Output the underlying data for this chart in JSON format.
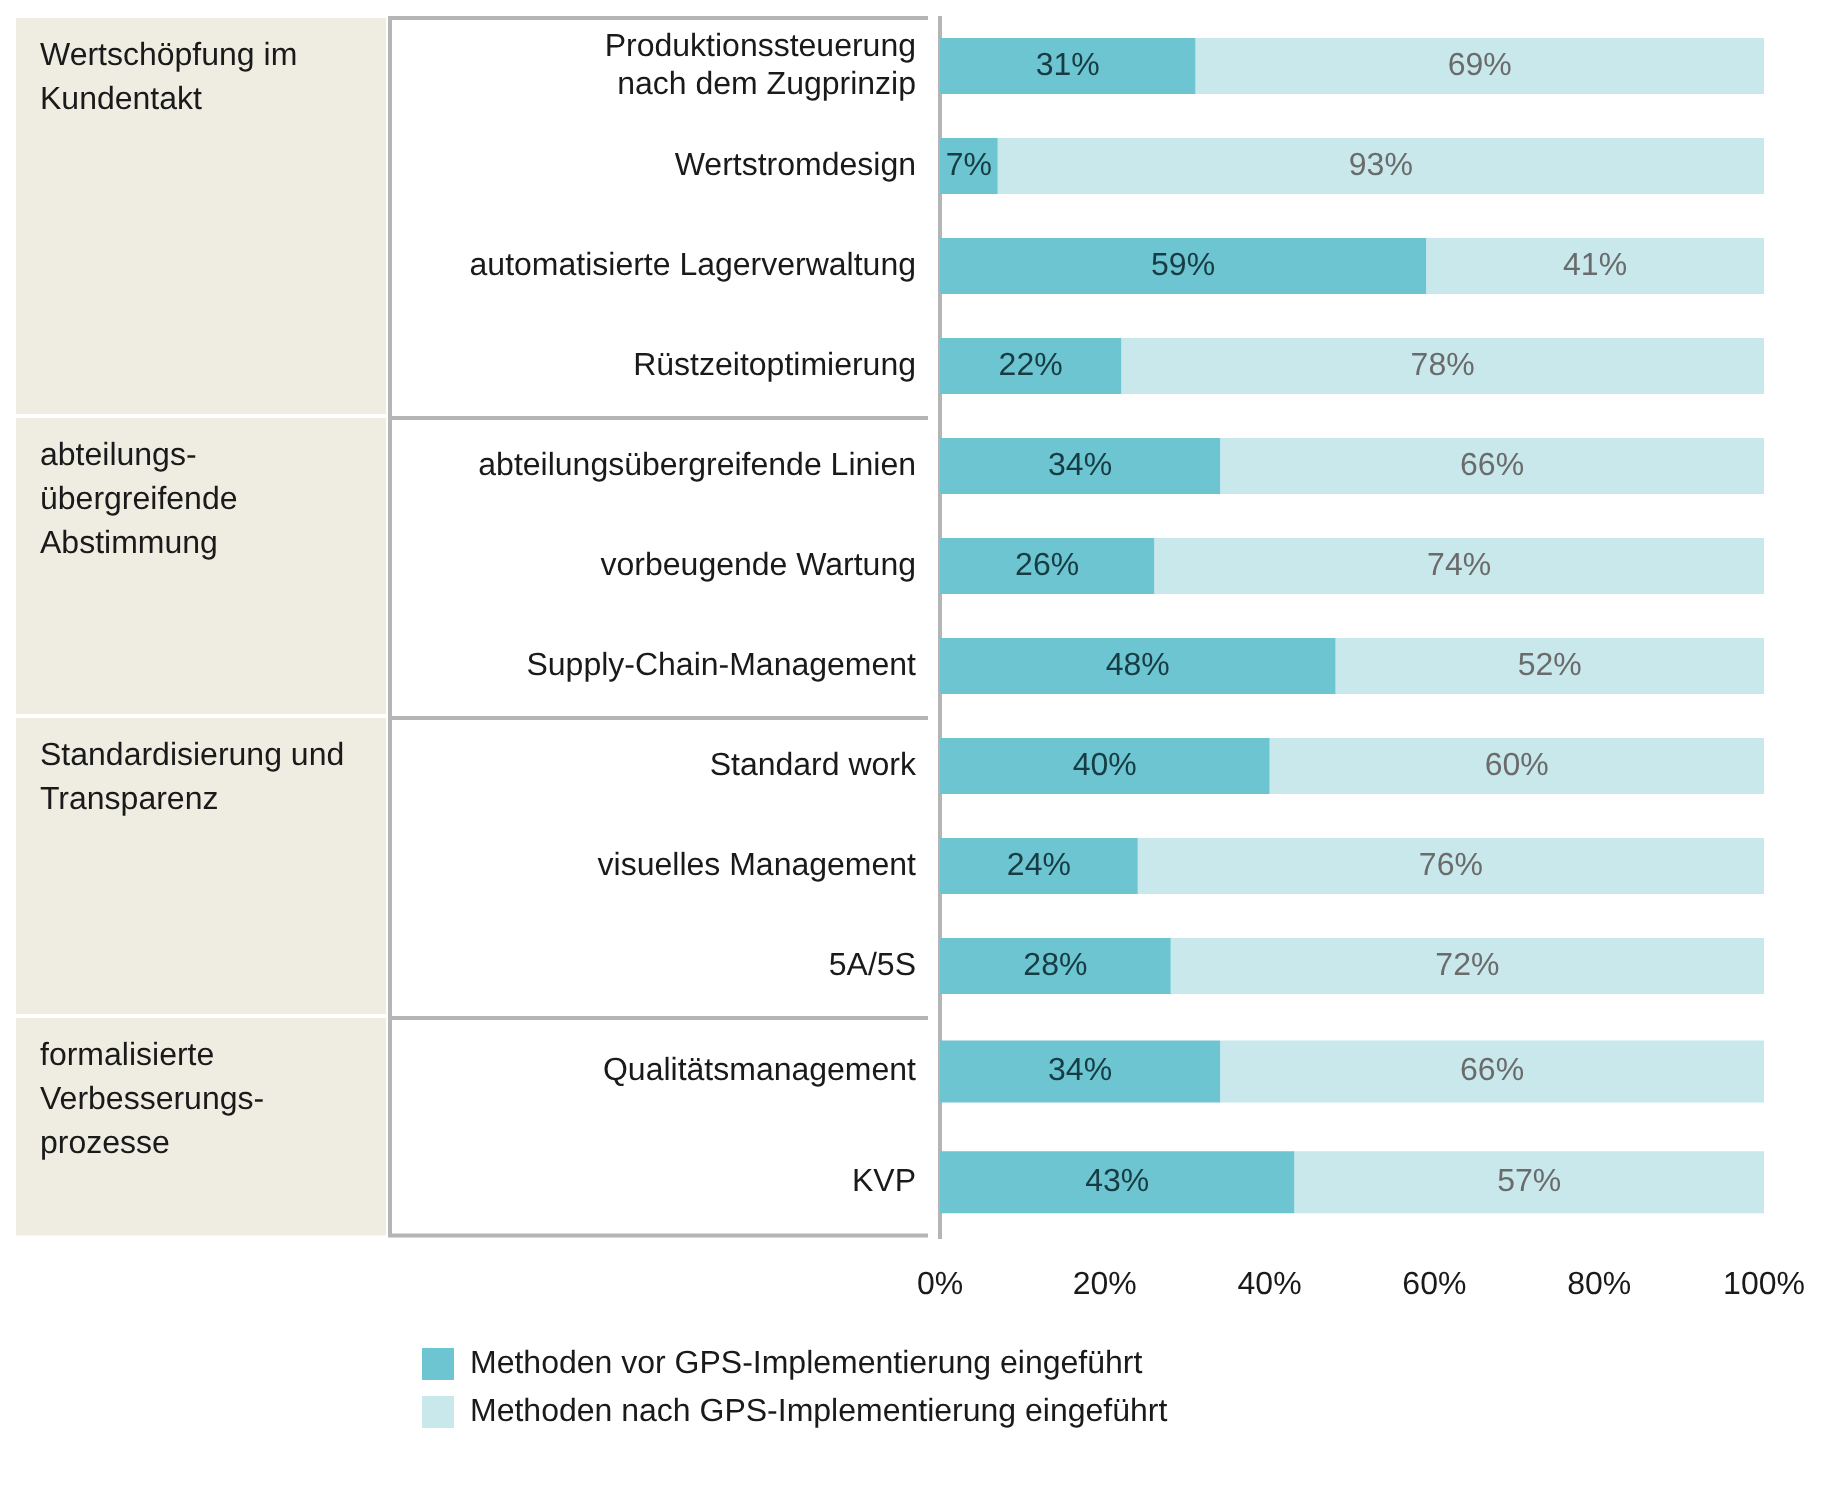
{
  "chart_data": [
    {
      "type": "bar",
      "orientation": "horizontal",
      "stacked": true,
      "ylabel": "Wertschöpfung im Kundentakt",
      "categories": [
        "Produktionssteuerung nach dem Zugprinzip",
        "Wertstromdesign",
        "automatisierte Lagerverwaltung",
        "Rüstzeitoptimierung"
      ],
      "series": [
        {
          "color": "#6cc5d1",
          "values": [
            31,
            7,
            59,
            22
          ],
          "value_labels": [
            "31%",
            "7%",
            "59%",
            "22%"
          ]
        },
        {
          "color": "#c9e8ec",
          "values": [
            69,
            93,
            41,
            78
          ],
          "value_labels": [
            "69%",
            "93%",
            "41%",
            "78%"
          ]
        }
      ],
      "xlim": [
        0,
        100
      ],
      "tick_labels": "y",
      "grid": false
    },
    {
      "type": "bar",
      "orientation": "horizontal",
      "stacked": true,
      "ylabel": "abteilungs- übergreifende Abstimmung",
      "categories": [
        "abteilungsübergreifende Linien",
        "vorbeugende Wartung",
        "Supply-Chain-Management"
      ],
      "series": [
        {
          "color": "#6cc5d1",
          "values": [
            34,
            26,
            48
          ],
          "value_labels": [
            "34%",
            "26%",
            "48%"
          ]
        },
        {
          "color": "#c9e8ec",
          "values": [
            66,
            74,
            52
          ],
          "value_labels": [
            "66%",
            "74%",
            "52%"
          ]
        }
      ],
      "xlim": [
        0,
        100
      ],
      "tick_labels": "y",
      "grid": false
    },
    {
      "type": "bar",
      "orientation": "horizontal",
      "stacked": true,
      "ylabel": "Standardisierung und Transparenz",
      "categories": [
        "Standard work",
        "visuelles Management",
        "5A/5S"
      ],
      "series": [
        {
          "color": "#6cc5d1",
          "values": [
            40,
            24,
            28
          ],
          "value_labels": [
            "40%",
            "24%",
            "28%"
          ]
        },
        {
          "color": "#c9e8ec",
          "values": [
            60,
            76,
            72
          ],
          "value_labels": [
            "60%",
            "76%",
            "72%"
          ]
        }
      ],
      "xlim": [
        0,
        100
      ],
      "tick_labels": "y",
      "grid": false
    },
    {
      "type": "bar",
      "orientation": "horizontal",
      "stacked": true,
      "ylabel": "formalisierte Verbesserungs- prozesse",
      "categories": [
        "Qualitätsmanagement",
        "KVP"
      ],
      "series": [
        {
          "name": "Methoden vor GPS-Implementierung eingeführt",
          "color": "#6cc5d1",
          "values": [
            34,
            43
          ],
          "value_labels": [
            "34%",
            "43%"
          ]
        },
        {
          "name": "Methoden nach GPS-Implementierung eingeführt",
          "color": "#c9e8ec",
          "values": [
            66,
            57
          ],
          "value_labels": [
            "66%",
            "57%"
          ]
        }
      ],
      "xlim": [
        0,
        100
      ],
      "xticks": [
        {
          "value": 0,
          "label": "0%"
        },
        {
          "value": 20,
          "label": "20%"
        },
        {
          "value": 40,
          "label": "40%"
        },
        {
          "value": 60,
          "label": "60%"
        },
        {
          "value": 80,
          "label": "80%"
        },
        {
          "value": 100,
          "label": "100%"
        }
      ],
      "grid": false,
      "legend": "bottom"
    }
  ]
}
